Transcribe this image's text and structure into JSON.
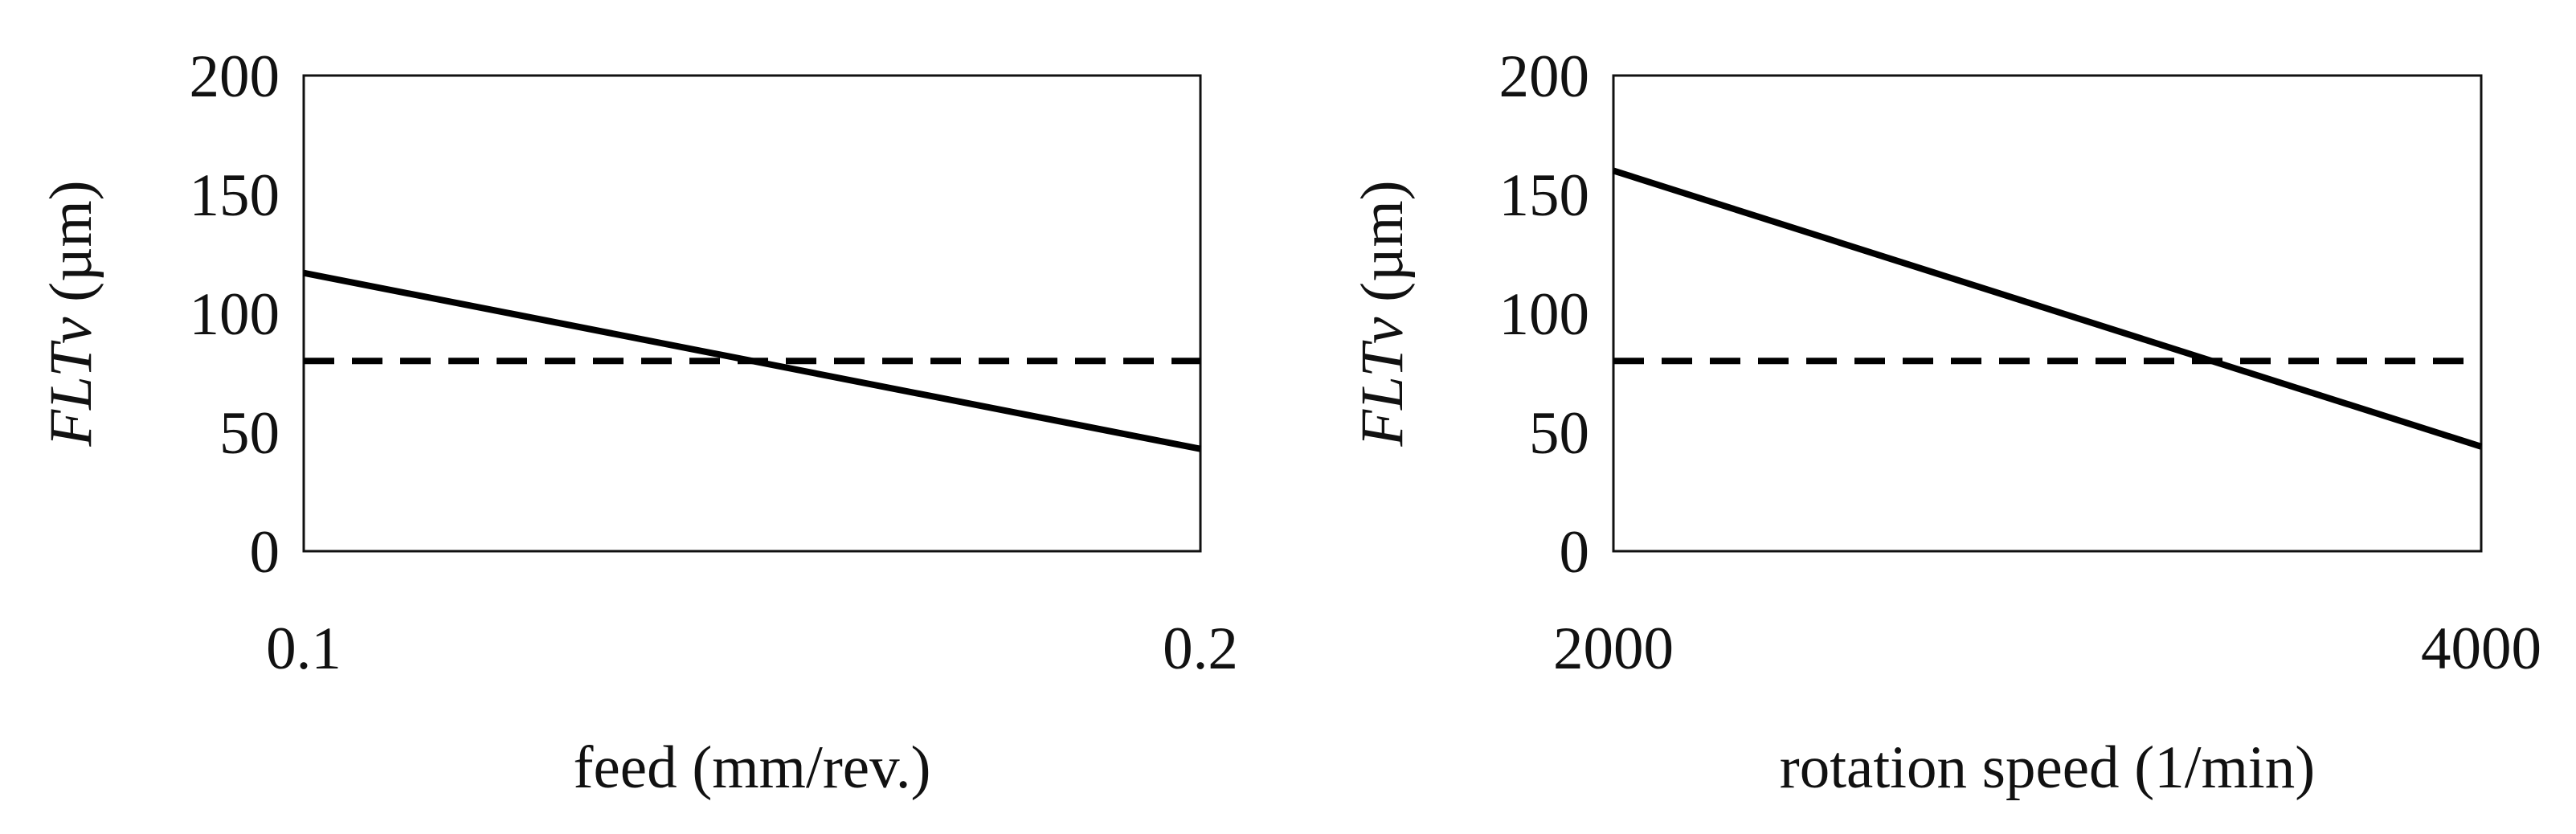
{
  "chart_data": [
    {
      "type": "line",
      "xlabel": "feed (mm/rev.)",
      "ylabel_italic": "FLTv",
      "ylabel_unit": " (µm)",
      "x_ticks": [
        "0.1",
        "0.2"
      ],
      "y_ticks": [
        "0",
        "50",
        "100",
        "150",
        "200"
      ],
      "xlim": [
        0.1,
        0.2
      ],
      "ylim": [
        0,
        200
      ],
      "series": [
        {
          "style": "solid",
          "x": [
            0.1,
            0.2
          ],
          "y": [
            117,
            43
          ]
        },
        {
          "style": "dashed",
          "x": [
            0.1,
            0.2
          ],
          "y": [
            80,
            80
          ]
        }
      ]
    },
    {
      "type": "line",
      "xlabel": "rotation speed (1/min)",
      "ylabel_italic": "FLTv",
      "ylabel_unit": " (µm)",
      "x_ticks": [
        "2000",
        "4000"
      ],
      "y_ticks": [
        "0",
        "50",
        "100",
        "150",
        "200"
      ],
      "xlim": [
        2000,
        4000
      ],
      "ylim": [
        0,
        200
      ],
      "series": [
        {
          "style": "solid",
          "x": [
            2000,
            4000
          ],
          "y": [
            160,
            44
          ]
        },
        {
          "style": "dashed",
          "x": [
            2000,
            4000
          ],
          "y": [
            80,
            80
          ]
        }
      ]
    }
  ]
}
